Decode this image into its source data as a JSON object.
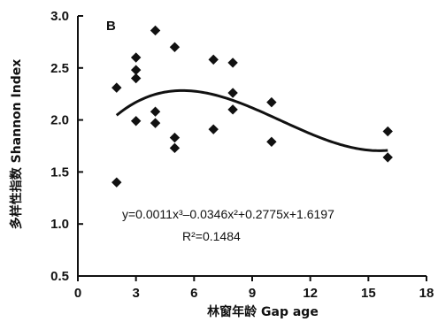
{
  "chart_data": {
    "type": "scatter",
    "panel_label": "B",
    "xlabel": "林窗年龄 Gap age",
    "ylabel": "多样性指数 Shannon Index",
    "xlim": [
      0,
      18
    ],
    "ylim": [
      0.5,
      3.0
    ],
    "x_ticks": [
      "0",
      "3",
      "6",
      "9",
      "12",
      "15",
      "18"
    ],
    "y_ticks": [
      "0.5",
      "1.0",
      "1.5",
      "2.0",
      "2.5",
      "3.0"
    ],
    "grid": false,
    "series": [
      {
        "points": [
          {
            "x": 2,
            "y": 2.31
          },
          {
            "x": 2,
            "y": 1.4
          },
          {
            "x": 3,
            "y": 2.6
          },
          {
            "x": 3,
            "y": 2.48
          },
          {
            "x": 3,
            "y": 2.4
          },
          {
            "x": 3,
            "y": 1.99
          },
          {
            "x": 4,
            "y": 2.86
          },
          {
            "x": 4,
            "y": 2.08
          },
          {
            "x": 4,
            "y": 1.97
          },
          {
            "x": 5,
            "y": 2.7
          },
          {
            "x": 5,
            "y": 1.83
          },
          {
            "x": 5,
            "y": 1.73
          },
          {
            "x": 7,
            "y": 2.58
          },
          {
            "x": 7,
            "y": 1.91
          },
          {
            "x": 8,
            "y": 2.55
          },
          {
            "x": 8,
            "y": 2.26
          },
          {
            "x": 8,
            "y": 2.1
          },
          {
            "x": 10,
            "y": 2.17
          },
          {
            "x": 10,
            "y": 1.79
          },
          {
            "x": 16,
            "y": 1.89
          },
          {
            "x": 16,
            "y": 1.64
          }
        ]
      }
    ],
    "fit": {
      "coefficients": [
        0.0011,
        -0.0346,
        0.2775,
        1.6197
      ],
      "x_range": [
        2,
        16
      ],
      "equation": "y=0.0011x³–0.0346x²+0.2775x+1.6197",
      "r2": "R²=0.1484"
    }
  }
}
